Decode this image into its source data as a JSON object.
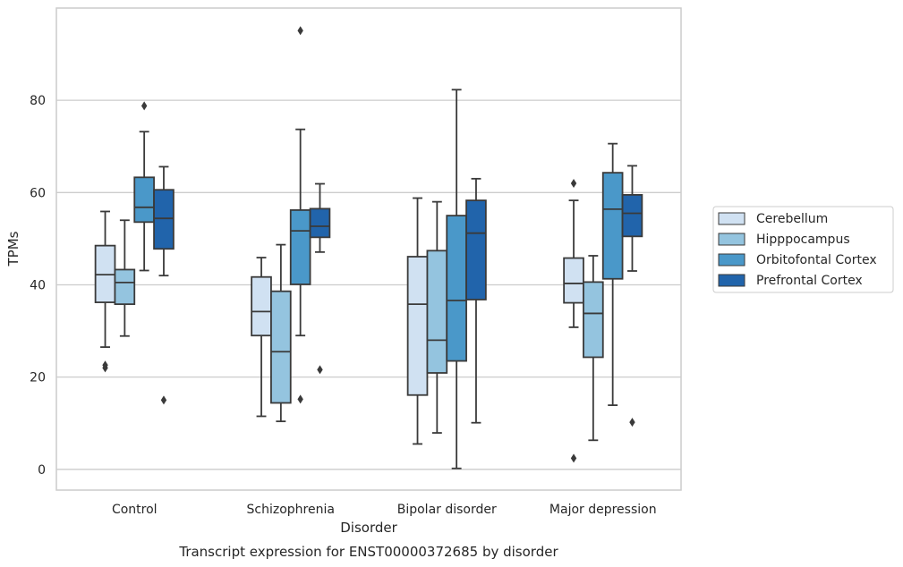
{
  "chart_data": {
    "type": "box",
    "caption": "Transcript expression for ENST00000372685 by disorder",
    "xlabel": "Disorder",
    "ylabel": "TPMs",
    "ylim": [
      -4.5,
      100
    ],
    "yticks": [
      0,
      20,
      40,
      60,
      80
    ],
    "grid": "horizontal",
    "legend_position": "right",
    "categories": [
      "Control",
      "Schizophrenia",
      "Bipolar disorder",
      "Major depression"
    ],
    "series": [
      {
        "name": "Cerebellum",
        "color": "#d0e1f2",
        "boxes": [
          {
            "whisker_low": 26.5,
            "q1": 36.2,
            "median": 42.2,
            "q3": 48.5,
            "whisker_high": 55.9,
            "outliers": [
              22.0,
              22.6
            ]
          },
          {
            "whisker_low": 11.5,
            "q1": 29.0,
            "median": 34.2,
            "q3": 41.7,
            "whisker_high": 45.9,
            "outliers": []
          },
          {
            "whisker_low": 5.5,
            "q1": 16.1,
            "median": 35.8,
            "q3": 46.1,
            "whisker_high": 58.8,
            "outliers": []
          },
          {
            "whisker_low": 30.8,
            "q1": 36.1,
            "median": 40.3,
            "q3": 45.8,
            "whisker_high": 58.3,
            "outliers": [
              62.0,
              2.4
            ]
          }
        ]
      },
      {
        "name": "Hipppocampus",
        "color": "#94c4df",
        "boxes": [
          {
            "whisker_low": 28.9,
            "q1": 35.8,
            "median": 40.5,
            "q3": 43.3,
            "whisker_high": 54.0,
            "outliers": []
          },
          {
            "whisker_low": 10.4,
            "q1": 14.4,
            "median": 25.5,
            "q3": 38.6,
            "whisker_high": 48.7,
            "outliers": []
          },
          {
            "whisker_low": 7.9,
            "q1": 20.9,
            "median": 28.0,
            "q3": 47.4,
            "whisker_high": 58.0,
            "outliers": []
          },
          {
            "whisker_low": 6.3,
            "q1": 24.3,
            "median": 33.8,
            "q3": 40.6,
            "whisker_high": 46.3,
            "outliers": []
          }
        ]
      },
      {
        "name": "Orbitofontal Cortex",
        "color": "#4a98c9",
        "boxes": [
          {
            "whisker_low": 43.1,
            "q1": 53.6,
            "median": 56.8,
            "q3": 63.3,
            "whisker_high": 73.2,
            "outliers": [
              78.8
            ]
          },
          {
            "whisker_low": 29.0,
            "q1": 40.1,
            "median": 51.7,
            "q3": 56.2,
            "whisker_high": 73.7,
            "outliers": [
              95.1,
              15.2
            ]
          },
          {
            "whisker_low": 0.2,
            "q1": 23.5,
            "median": 36.6,
            "q3": 55.0,
            "whisker_high": 82.3,
            "outliers": []
          },
          {
            "whisker_low": 13.9,
            "q1": 41.3,
            "median": 56.4,
            "q3": 64.3,
            "whisker_high": 70.6,
            "outliers": []
          }
        ]
      },
      {
        "name": "Prefrontal Cortex",
        "color": "#2164ab",
        "boxes": [
          {
            "whisker_low": 42.0,
            "q1": 47.8,
            "median": 54.4,
            "q3": 60.6,
            "whisker_high": 65.6,
            "outliers": [
              15.0
            ]
          },
          {
            "whisker_low": 47.1,
            "q1": 50.3,
            "median": 52.7,
            "q3": 56.5,
            "whisker_high": 61.9,
            "outliers": [
              21.6
            ]
          },
          {
            "whisker_low": 10.1,
            "q1": 36.8,
            "median": 51.2,
            "q3": 58.3,
            "whisker_high": 63.0,
            "outliers": []
          },
          {
            "whisker_low": 43.0,
            "q1": 50.5,
            "median": 55.5,
            "q3": 59.5,
            "whisker_high": 65.8,
            "outliers": [
              10.2
            ]
          }
        ]
      }
    ]
  }
}
